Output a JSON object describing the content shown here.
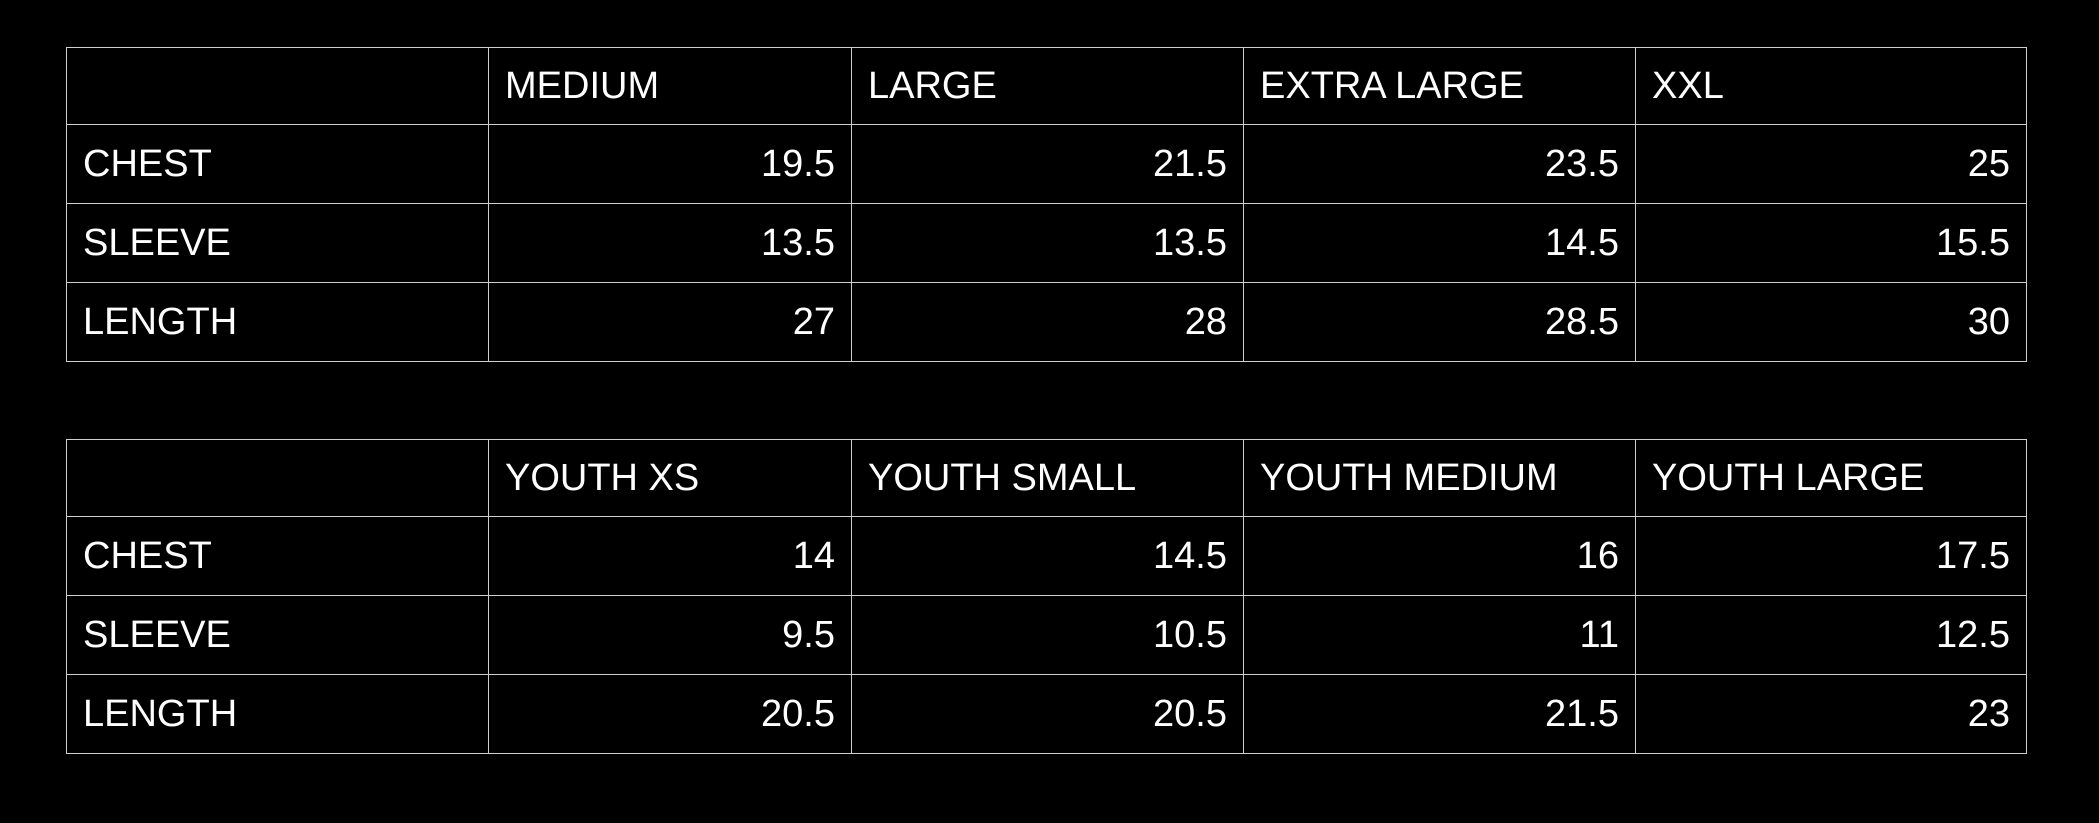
{
  "adult_table": {
    "corner": "",
    "headers": [
      "MEDIUM",
      "LARGE",
      "EXTRA LARGE",
      "XXL"
    ],
    "rows": [
      {
        "label": "CHEST",
        "values": [
          "19.5",
          "21.5",
          "23.5",
          "25"
        ]
      },
      {
        "label": "SLEEVE",
        "values": [
          "13.5",
          "13.5",
          "14.5",
          "15.5"
        ]
      },
      {
        "label": "LENGTH",
        "values": [
          "27",
          "28",
          "28.5",
          "30"
        ]
      }
    ]
  },
  "youth_table": {
    "corner": "",
    "headers": [
      "YOUTH XS",
      "YOUTH SMALL",
      "YOUTH MEDIUM",
      "YOUTH LARGE"
    ],
    "rows": [
      {
        "label": "CHEST",
        "values": [
          "14",
          "14.5",
          "16",
          "17.5"
        ]
      },
      {
        "label": "SLEEVE",
        "values": [
          "9.5",
          "10.5",
          "11",
          "12.5"
        ]
      },
      {
        "label": "LENGTH",
        "values": [
          "20.5",
          "20.5",
          "21.5",
          "23"
        ]
      }
    ]
  },
  "colors": {
    "background": "#000000",
    "text": "#ffffff",
    "grid": "#cfcfcf"
  }
}
